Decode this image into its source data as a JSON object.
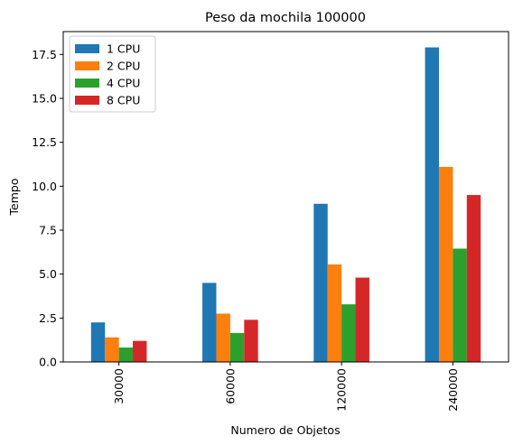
{
  "chart_data": {
    "type": "bar",
    "title": "Peso da mochila 100000",
    "xlabel": "Numero de Objetos",
    "ylabel": "Tempo",
    "categories": [
      "30000",
      "60000",
      "120000",
      "240000"
    ],
    "series": [
      {
        "name": "1 CPU",
        "color": "#1f77b4",
        "values": [
          2.25,
          4.5,
          9.0,
          17.9
        ]
      },
      {
        "name": "2 CPU",
        "color": "#ff7f0e",
        "values": [
          1.4,
          2.75,
          5.55,
          11.1
        ]
      },
      {
        "name": "4 CPU",
        "color": "#2ca02c",
        "values": [
          0.82,
          1.65,
          3.28,
          6.45
        ]
      },
      {
        "name": "8 CPU",
        "color": "#d62728",
        "values": [
          1.2,
          2.4,
          4.8,
          9.5
        ]
      }
    ],
    "ylim": [
      0,
      18.8
    ],
    "yticks": [
      0.0,
      2.5,
      5.0,
      7.5,
      10.0,
      12.5,
      15.0,
      17.5
    ],
    "ytick_labels": [
      "0.0",
      "2.5",
      "5.0",
      "7.5",
      "10.0",
      "12.5",
      "15.0",
      "17.5"
    ],
    "grid": false,
    "legend_position": "top-left"
  }
}
